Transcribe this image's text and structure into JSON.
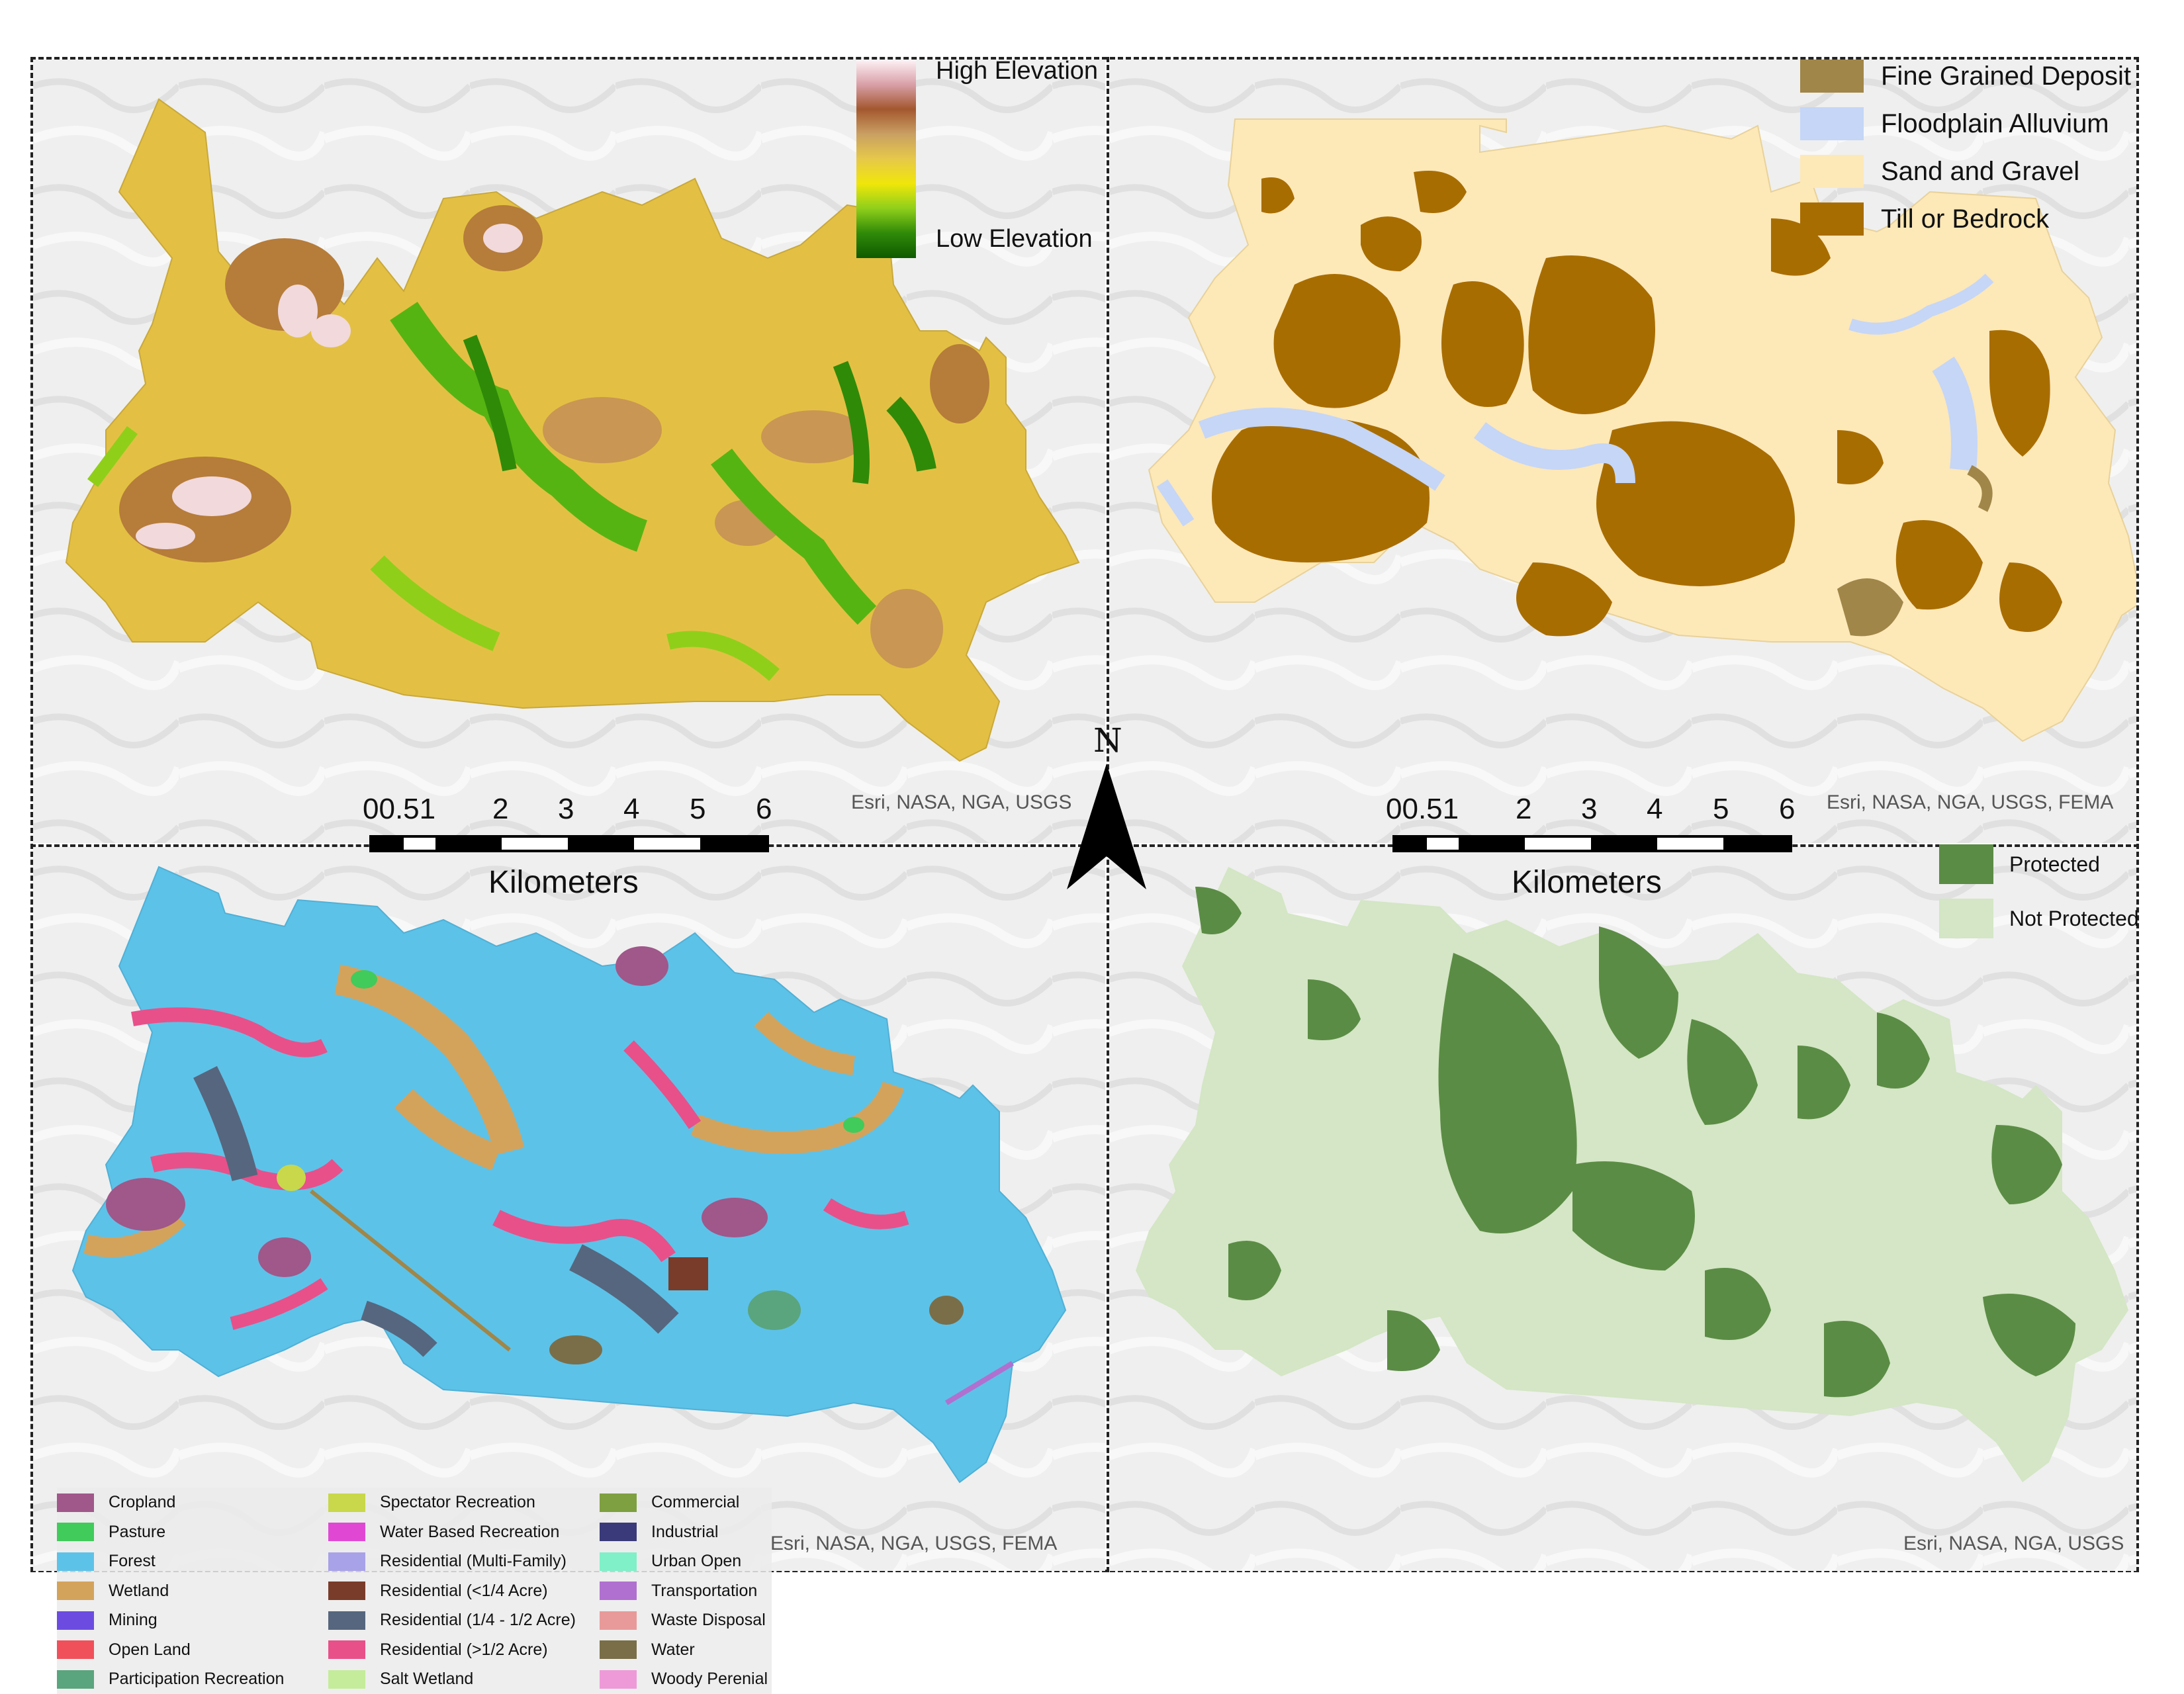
{
  "north_arrow": {
    "label": "N"
  },
  "panels": {
    "elevation": {
      "legend": {
        "high_label": "High Elevation",
        "low_label": "Low Elevation",
        "gradient": [
          "#fdf3f6",
          "#d9a0a8",
          "#a3572e",
          "#c9a063",
          "#e6c84a",
          "#f0e60a",
          "#8fcf1a",
          "#2f8a08",
          "#0f5a00"
        ]
      },
      "credit": "Esri, NASA, NGA, USGS",
      "colors": {
        "base": "#e3c043",
        "high": "#b67c3a",
        "low": "#56b412",
        "peak": "#f1d9dc"
      }
    },
    "geology": {
      "legend": [
        {
          "label": "Fine Grained Deposit",
          "color": "#a08648"
        },
        {
          "label": "Floodplain Alluvium",
          "color": "#c5d6f7"
        },
        {
          "label": "Sand and Gravel",
          "color": "#fde8b8"
        },
        {
          "label": "Till or Bedrock",
          "color": "#a86d00"
        }
      ],
      "credit": "Esri, NASA, NGA, USGS, FEMA"
    },
    "landuse": {
      "credit": "Esri, NASA, NGA, USGS, FEMA",
      "legend": [
        {
          "label": "Cropland",
          "color": "#a0578a"
        },
        {
          "label": "Pasture",
          "color": "#41cb5a"
        },
        {
          "label": "Forest",
          "color": "#5dc2e8"
        },
        {
          "label": "Wetland",
          "color": "#d3a35c"
        },
        {
          "label": "Mining",
          "color": "#6c4ce0"
        },
        {
          "label": "Open Land",
          "color": "#f0505a"
        },
        {
          "label": "Participation Recreation",
          "color": "#5aa57e"
        },
        {
          "label": "Spectator Recreation",
          "color": "#c8d84a"
        },
        {
          "label": "Water Based Recreation",
          "color": "#e048d4"
        },
        {
          "label": "Residential (Multi-Family)",
          "color": "#a8a2e8"
        },
        {
          "label": "Residential (<1/4 Acre)",
          "color": "#7a3c2a"
        },
        {
          "label": "Residential (1/4 - 1/2 Acre)",
          "color": "#56667e"
        },
        {
          "label": "Residential (>1/2 Acre)",
          "color": "#e8508a"
        },
        {
          "label": "Salt Wetland",
          "color": "#c4ec9a"
        },
        {
          "label": "Commercial",
          "color": "#7ea040"
        },
        {
          "label": "Industrial",
          "color": "#3a3a7a"
        },
        {
          "label": "Urban Open",
          "color": "#7ff0c8"
        },
        {
          "label": "Transportation",
          "color": "#b070d0"
        },
        {
          "label": "Waste Disposal",
          "color": "#e89a9a"
        },
        {
          "label": "Water",
          "color": "#7a6e48"
        },
        {
          "label": "Woody Perenial",
          "color": "#ee9ad8"
        }
      ]
    },
    "protection": {
      "legend": [
        {
          "label": "Protected",
          "color": "#5b8c45"
        },
        {
          "label": "Not Protected",
          "color": "#d4e6c5"
        }
      ],
      "credit": "Esri, NASA, NGA, USGS"
    }
  },
  "scalebars": [
    {
      "ticks": [
        "00.51",
        "2",
        "3",
        "4",
        "5",
        "6"
      ],
      "unit": "Kilometers"
    },
    {
      "ticks": [
        "00.51",
        "2",
        "3",
        "4",
        "5",
        "6"
      ],
      "unit": "Kilometers"
    }
  ]
}
